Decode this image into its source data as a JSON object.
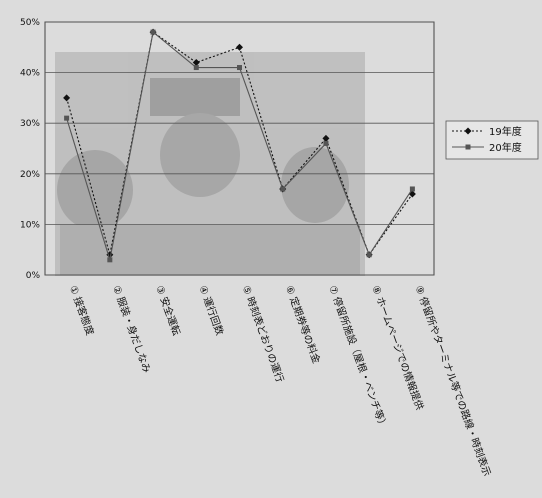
{
  "chart_data": {
    "type": "line",
    "title": "",
    "xlabel": "",
    "ylabel": "",
    "ylim": [
      0,
      0.5
    ],
    "yticks": [
      "0%",
      "10%",
      "20%",
      "30%",
      "40%",
      "50%"
    ],
    "grid": true,
    "legend": "right",
    "categories": [
      "① 接客態度",
      "② 服装・身だしなみ",
      "③ 安全運転",
      "④ 運行回数",
      "⑤ 時刻表どおりの運行",
      "⑥ 定期券等の料金",
      "⑦ 停留所施設（屋根・ベンチ等）",
      "⑧ ホームページでの情報提供",
      "⑨ 停留所やターミナル等での路線・時刻表示"
    ],
    "series": [
      {
        "name": "19年度",
        "values": [
          0.35,
          0.04,
          0.48,
          0.42,
          0.45,
          0.17,
          0.27,
          0.04,
          0.16
        ]
      },
      {
        "name": "20年度",
        "values": [
          0.31,
          0.03,
          0.48,
          0.41,
          0.41,
          0.17,
          0.26,
          0.04,
          0.17
        ]
      }
    ]
  },
  "colors": {
    "series1": "#111111",
    "series2": "#555555",
    "plot_bg": "#cdcdcd",
    "photo": "#a9a9a9"
  }
}
